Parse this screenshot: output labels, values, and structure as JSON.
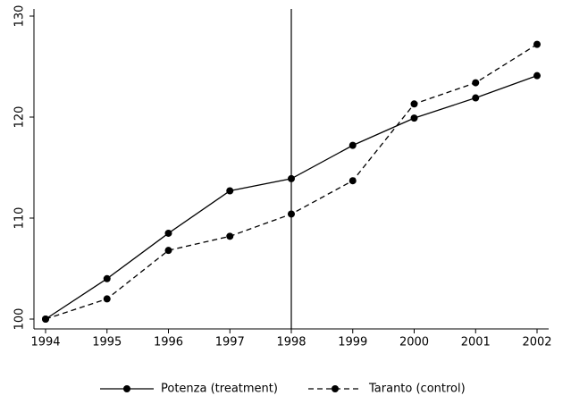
{
  "chart_data": {
    "type": "line",
    "x": [
      1994,
      1995,
      1996,
      1997,
      1998,
      1999,
      2000,
      2001,
      2002
    ],
    "series": [
      {
        "name": "Potenza (treatment)",
        "color": "#000000",
        "dash": "solid",
        "values": [
          100,
          104.0,
          108.5,
          112.7,
          113.9,
          117.2,
          119.9,
          121.9,
          124.1
        ]
      },
      {
        "name": "Taranto (control)",
        "color": "#000000",
        "dash": "dashed",
        "values": [
          100,
          102.0,
          106.8,
          108.2,
          110.4,
          113.7,
          121.3,
          123.4,
          127.2
        ]
      }
    ],
    "xlim": [
      1994,
      2002
    ],
    "xticks": [
      1994,
      1995,
      1996,
      1997,
      1998,
      1999,
      2000,
      2001,
      2002
    ],
    "ylim": [
      100,
      130
    ],
    "yticks": [
      100,
      110,
      120,
      130
    ],
    "vline": 1998,
    "grid": false,
    "legend": "bottom"
  }
}
